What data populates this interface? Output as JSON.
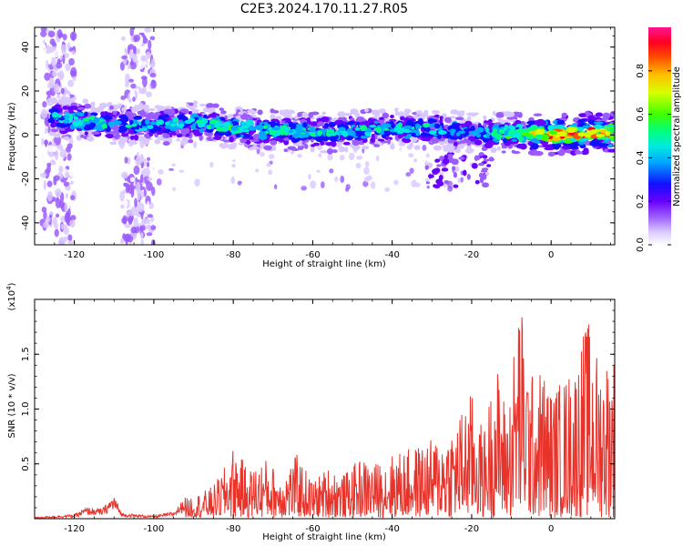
{
  "title": "C2E3.2024.170.11.27.R05",
  "chart_data": [
    {
      "type": "heatmap",
      "xlabel": "Height of straight line (km)",
      "ylabel": "Frequency (Hz)",
      "xlim": [
        -130,
        16
      ],
      "ylim": [
        -50,
        49
      ],
      "xticks": [
        "-120",
        "-100",
        "-80",
        "-60",
        "-40",
        "-20",
        "0"
      ],
      "yticks": [
        "40",
        "20",
        "0",
        "-20",
        "-40"
      ],
      "colorbar": {
        "label": "Normalized spectral amplitude",
        "range": [
          0,
          1
        ],
        "ticks": [
          "0.0",
          "0.2",
          "0.4",
          "0.6",
          "0.8"
        ],
        "colors": [
          "#ffffff",
          "#b48cff",
          "#7a00ff",
          "#0000ff",
          "#00c8ff",
          "#00ff96",
          "#64ff00",
          "#ffff00",
          "#ff8c00",
          "#ff0000",
          "#ff1493"
        ]
      },
      "ridge": {
        "x": [
          -125,
          -120,
          -110,
          -100,
          -90,
          -80,
          -70,
          -60,
          -50,
          -40,
          -30,
          -20,
          -10,
          0,
          10,
          16
        ],
        "y": [
          8,
          7,
          5,
          4,
          6,
          3,
          2,
          1,
          2,
          3,
          3,
          1,
          1,
          0,
          1,
          1
        ],
        "peak_amplitude": [
          0.45,
          0.55,
          0.5,
          0.45,
          0.55,
          0.55,
          0.55,
          0.55,
          0.5,
          0.5,
          0.5,
          0.45,
          0.6,
          0.9,
          0.9,
          0.85
        ]
      },
      "grid": false
    },
    {
      "type": "line",
      "xlabel": "Height of straight line (km)",
      "ylabel": "SNR (10 * v/v)",
      "y_multiplier": "(x10",
      "y_multiplier_exp": "4",
      "y_multiplier_close": ")",
      "xlim": [
        -130,
        16
      ],
      "ylim": [
        0,
        2.0
      ],
      "xticks": [
        "-120",
        "-100",
        "-80",
        "-60",
        "-40",
        "-20",
        "0"
      ],
      "yticks": [
        "0.5",
        "1.0",
        "1.5"
      ],
      "series": [
        {
          "color": "#e8332b",
          "x": [
            -130,
            -120,
            -117,
            -113,
            -110,
            -108,
            -100,
            -95,
            -91,
            -88,
            -85,
            -82,
            -80,
            -76,
            -72,
            -68,
            -64,
            -60,
            -56,
            -52,
            -48,
            -44,
            -40,
            -36,
            -32,
            -28,
            -24,
            -20,
            -17,
            -14,
            -11,
            -8,
            -5,
            -2,
            0,
            3,
            6,
            9,
            12,
            15
          ],
          "y": [
            0.01,
            0.03,
            0.08,
            0.07,
            0.17,
            0.04,
            0.02,
            0.05,
            0.19,
            0.22,
            0.28,
            0.45,
            0.62,
            0.42,
            0.52,
            0.38,
            0.55,
            0.32,
            0.45,
            0.38,
            0.52,
            0.48,
            0.56,
            0.6,
            0.65,
            0.72,
            0.85,
            1.1,
            0.75,
            1.38,
            0.95,
            1.98,
            1.25,
            1.32,
            1.12,
            1.22,
            1.35,
            1.75,
            1.4,
            1.45
          ]
        }
      ]
    }
  ]
}
